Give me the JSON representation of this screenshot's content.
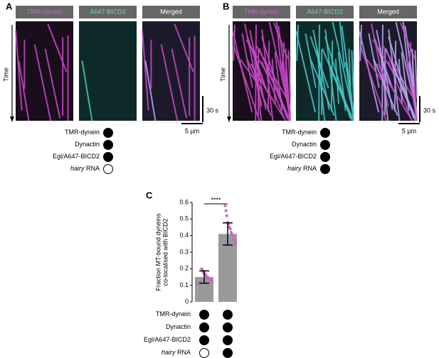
{
  "panels": [
    {
      "label": "A",
      "channels": [
        {
          "name": "TMR-dynein",
          "color": "#d35fd3"
        },
        {
          "name": "A647-BICD2",
          "color": "#6fd0d0"
        },
        {
          "name": "Merged",
          "color": "#ffffff"
        }
      ],
      "time_label": "Time",
      "time_scale": "30 s",
      "space_scale": "5 µm",
      "conditions": [
        {
          "label": "TMR-dynein",
          "present": true
        },
        {
          "label": "Dynactin",
          "present": true
        },
        {
          "label": "Egl/A647-BICD2",
          "present": true
        },
        {
          "label_italic": "hairy",
          "label": "RNA",
          "present": false
        }
      ]
    },
    {
      "label": "B",
      "channels": [
        {
          "name": "TMR-dynein",
          "color": "#d35fd3"
        },
        {
          "name": "A647-BICD2",
          "color": "#6fd0d0"
        },
        {
          "name": "Merged",
          "color": "#ffffff"
        }
      ],
      "time_label": "Time",
      "time_scale": "30 s",
      "space_scale": "5 µm",
      "conditions": [
        {
          "label": "TMR-dynein",
          "present": true
        },
        {
          "label": "Dynactin",
          "present": true
        },
        {
          "label": "Egl/A647-BICD2",
          "present": true
        },
        {
          "label_italic": "hairy",
          "label": "RNA",
          "present": true
        }
      ]
    }
  ],
  "chart_data": {
    "type": "bar",
    "panel_label": "C",
    "y_label": [
      "Fraction MT-bound dyneins",
      "co-localised with BICD2"
    ],
    "values": [
      0.15,
      0.41
    ],
    "errors": [
      0.037,
      0.067
    ],
    "color": "#9a9a9a",
    "point_color": "#cc66c0",
    "points": [
      [
        0.11,
        0.12,
        0.13,
        0.13,
        0.14,
        0.14,
        0.15,
        0.15,
        0.16,
        0.17,
        0.17,
        0.18,
        0.19,
        0.2
      ],
      [
        0.34,
        0.35,
        0.37,
        0.38,
        0.4,
        0.41,
        0.42,
        0.44,
        0.45,
        0.47,
        0.48,
        0.52,
        0.55,
        0.58
      ]
    ],
    "ylim": [
      0,
      0.6
    ],
    "yticks": [
      0,
      0.1,
      0.2,
      0.3,
      0.4,
      0.5,
      0.6
    ],
    "significance": "****",
    "conditions": [
      {
        "label": "TMR-dynein",
        "present": [
          true,
          true
        ]
      },
      {
        "label": "Dynactin",
        "present": [
          true,
          true
        ]
      },
      {
        "label": "Egl/A647-BICD2",
        "present": [
          true,
          true
        ]
      },
      {
        "label_italic": "hairy",
        "label": "RNA",
        "present": [
          false,
          true
        ]
      }
    ]
  }
}
